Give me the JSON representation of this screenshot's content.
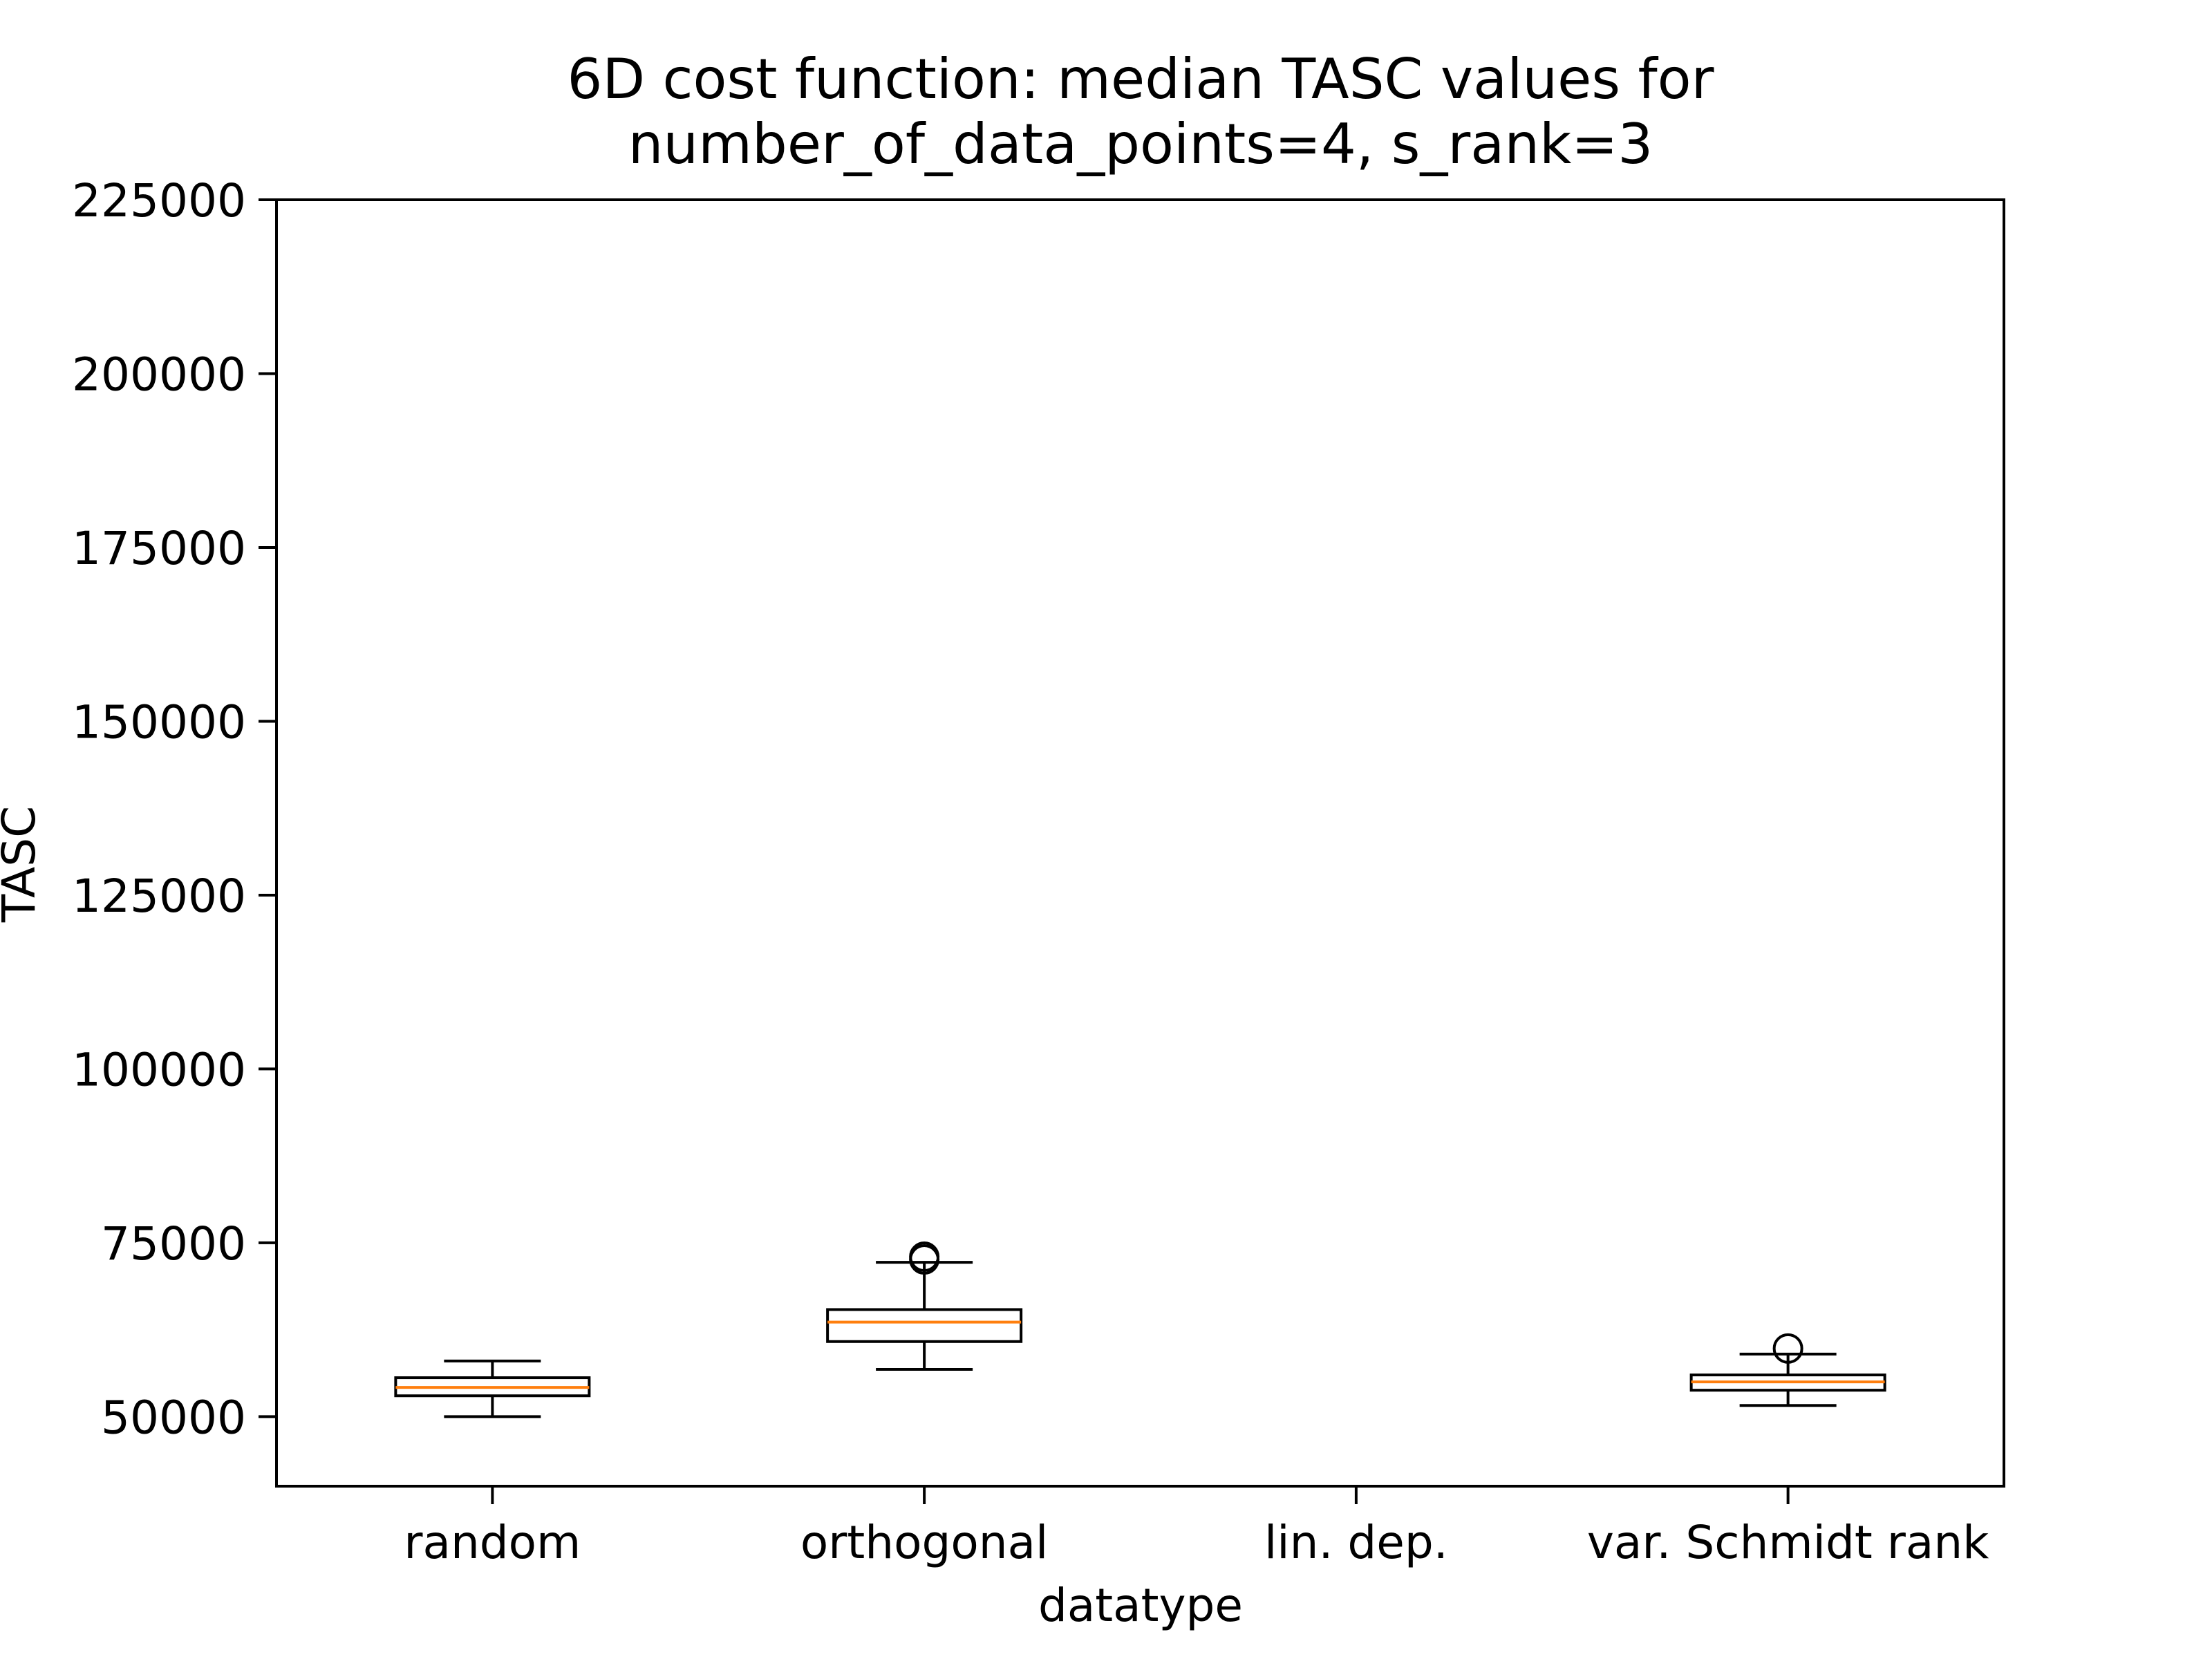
{
  "chart_data": {
    "type": "box",
    "title_lines": [
      "6D cost function: median TASC values for",
      "number_of_data_points=4, s_rank=3"
    ],
    "xlabel": "datatype",
    "ylabel": "TASC",
    "ylim": [
      40000,
      225000
    ],
    "yticks": [
      50000,
      75000,
      100000,
      125000,
      150000,
      175000,
      200000,
      225000
    ],
    "ytick_labels": [
      "50000",
      "75000",
      "100000",
      "125000",
      "150000",
      "175000",
      "200000",
      "225000"
    ],
    "categories": [
      "random",
      "orthogonal",
      "lin. dep.",
      "var. Schmidt rank"
    ],
    "boxes": [
      {
        "category": "random",
        "whisker_low": 50000,
        "q1": 53000,
        "median": 54200,
        "q3": 55600,
        "whisker_high": 58000,
        "outliers": []
      },
      {
        "category": "orthogonal",
        "whisker_low": 56800,
        "q1": 60800,
        "median": 63600,
        "q3": 65400,
        "whisker_high": 72200,
        "outliers": [
          72600,
          73000
        ]
      },
      {
        "category": "lin. dep.",
        "whisker_low": null,
        "q1": null,
        "median": null,
        "q3": null,
        "whisker_high": null,
        "outliers": []
      },
      {
        "category": "var. Schmidt rank",
        "whisker_low": 51600,
        "q1": 53800,
        "median": 55000,
        "q3": 56000,
        "whisker_high": 59000,
        "outliers": [
          59800
        ]
      }
    ],
    "grid": false,
    "colors": {
      "box": "#000000",
      "median": "#ff7f0e",
      "axes": "#000000"
    }
  }
}
